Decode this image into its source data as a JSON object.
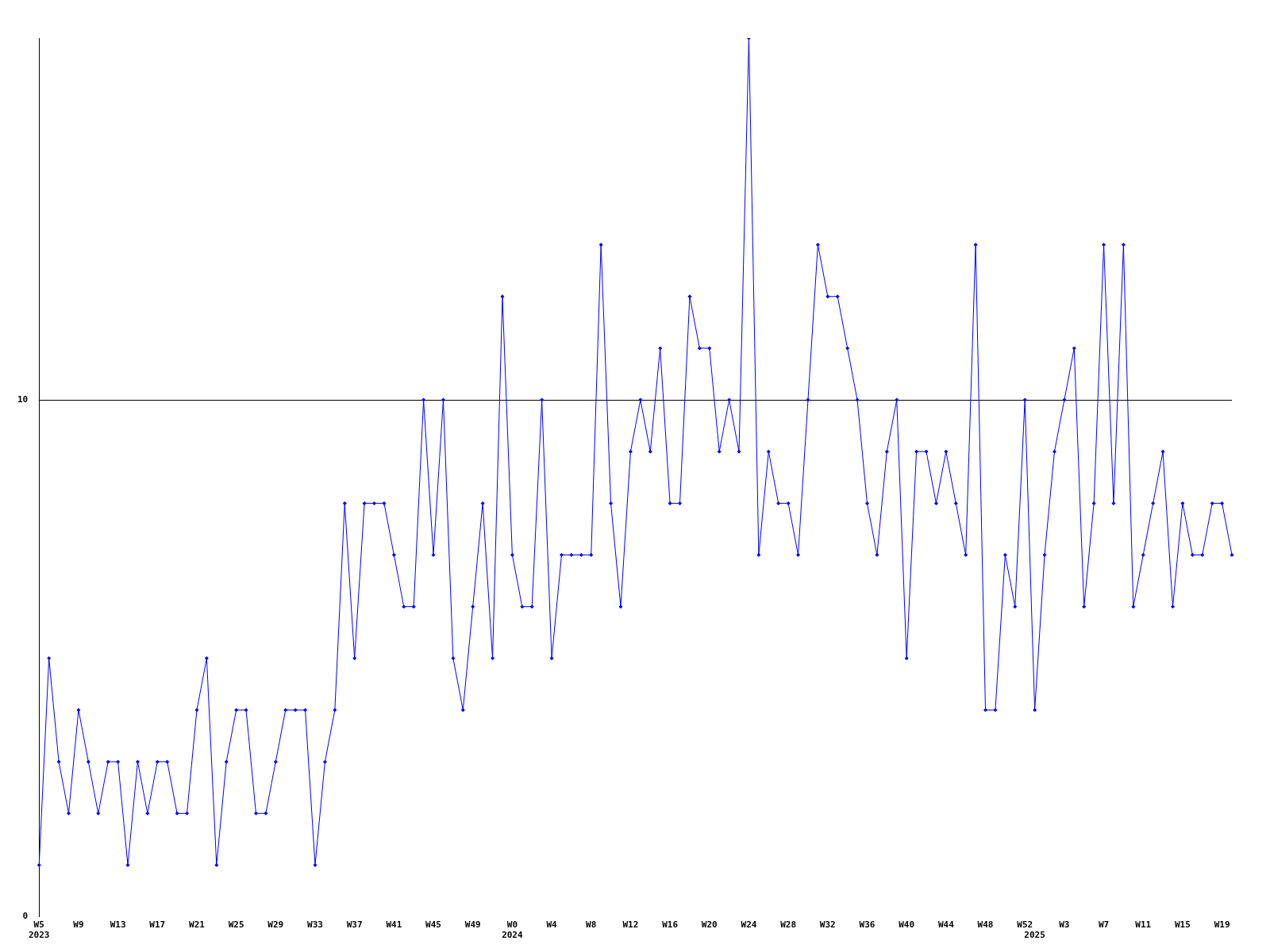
{
  "chart_data": {
    "type": "line",
    "categories": [
      "W5\n2023",
      null,
      null,
      null,
      "W9",
      null,
      null,
      null,
      "W13",
      null,
      null,
      null,
      "W17",
      null,
      null,
      null,
      "W21",
      null,
      null,
      null,
      "W25",
      null,
      null,
      null,
      "W29",
      null,
      null,
      null,
      "W33",
      null,
      null,
      null,
      "W37",
      null,
      null,
      null,
      "W41",
      null,
      null,
      null,
      "W45",
      null,
      null,
      null,
      "W49",
      null,
      null,
      null,
      "W0\n2024",
      null,
      null,
      null,
      "W4",
      null,
      null,
      null,
      "W8",
      null,
      null,
      null,
      "W12",
      null,
      null,
      null,
      "W16",
      null,
      null,
      null,
      "W20",
      null,
      null,
      null,
      "W24",
      null,
      null,
      null,
      "W28",
      null,
      null,
      null,
      "W32",
      null,
      null,
      null,
      "W36",
      null,
      null,
      null,
      "W40",
      null,
      null,
      null,
      "W44",
      null,
      null,
      null,
      "W48",
      null,
      null,
      null,
      "W52",
      "\n2025",
      null,
      null,
      "W3",
      null,
      null,
      null,
      "W7",
      null,
      null,
      null,
      "W11",
      null,
      null,
      null,
      "W15",
      null,
      null,
      null,
      "W19",
      null
    ],
    "series": [
      {
        "color": "#0000ff",
        "values": [
          1,
          5,
          3,
          2,
          4,
          3,
          2,
          3,
          3,
          1,
          3,
          2,
          3,
          3,
          2,
          2,
          4,
          5,
          1,
          3,
          4,
          4,
          2,
          2,
          3,
          4,
          4,
          4,
          1,
          3,
          4,
          8,
          5,
          8,
          8,
          8,
          7,
          6,
          6,
          10,
          7,
          10,
          5,
          4,
          6,
          8,
          5,
          12,
          7,
          6,
          6,
          10,
          5,
          7,
          7,
          7,
          7,
          13,
          8,
          6,
          9,
          10,
          9,
          11,
          8,
          8,
          12,
          11,
          11,
          9,
          10,
          9,
          17,
          7,
          9,
          8,
          8,
          7,
          10,
          13,
          12,
          12,
          11,
          10,
          8,
          7,
          9,
          10,
          5,
          9,
          9,
          8,
          9,
          8,
          7,
          13,
          4,
          4,
          7,
          6,
          10,
          4,
          7,
          9,
          10,
          11,
          6,
          8,
          13,
          8,
          13,
          6,
          7,
          8,
          9,
          6,
          8,
          7,
          7,
          8,
          8,
          7
        ]
      }
    ],
    "ylim": [
      0,
      17
    ],
    "yticks": [
      0,
      10
    ],
    "grid": "y",
    "marker": "diamond",
    "line_style": "solid",
    "legend": false
  }
}
